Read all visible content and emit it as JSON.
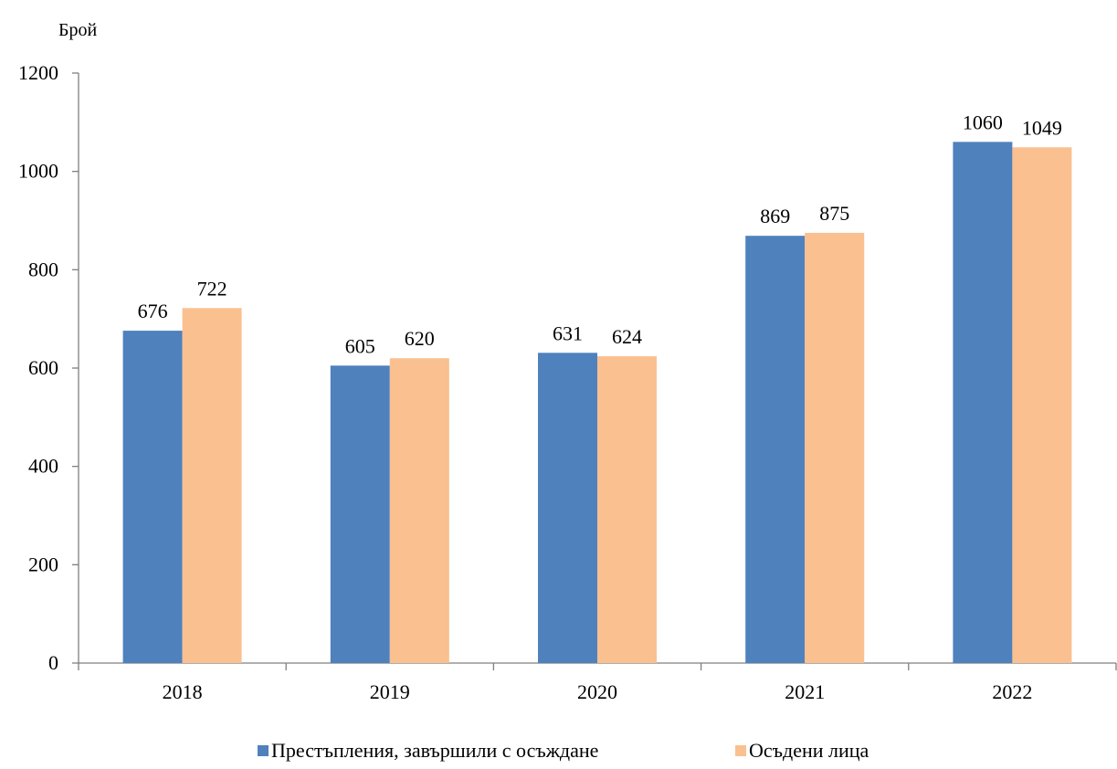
{
  "chart_data": {
    "type": "bar",
    "title": "",
    "xlabel": "",
    "ylabel": "Брой",
    "categories": [
      "2018",
      "2019",
      "2020",
      "2021",
      "2022"
    ],
    "series": [
      {
        "name": "Престъпления, завършили с осъждане",
        "color": "#4f81bd",
        "values": [
          676,
          605,
          631,
          869,
          1060
        ]
      },
      {
        "name": "Осъдени лица",
        "color": "#fac090",
        "values": [
          722,
          620,
          624,
          875,
          1049
        ]
      }
    ],
    "ylim": [
      0,
      1200
    ],
    "yticks": [
      0,
      200,
      400,
      600,
      800,
      1000,
      1200
    ],
    "grid": false,
    "data_labels": true,
    "legend_position": "bottom"
  }
}
